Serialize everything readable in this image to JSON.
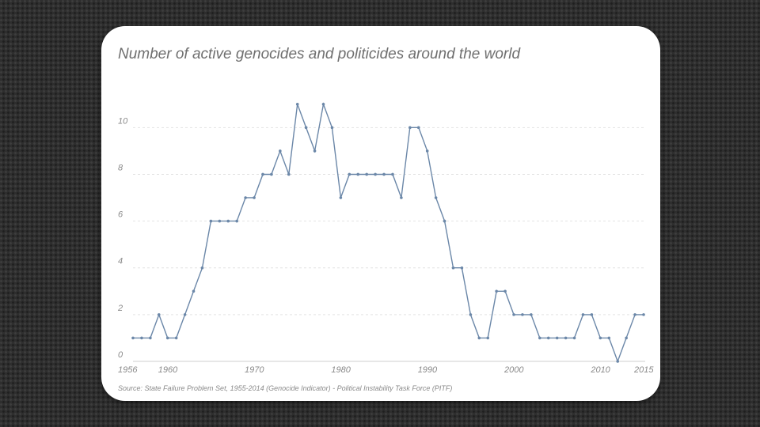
{
  "chart_data": {
    "type": "line",
    "title": "Number of active genocides and politicides around the world",
    "source": "Source: State Failure Problem Set, 1955-2014 (Genocide Indicator) - Political Instability Task Force (PITF)",
    "x": [
      1956,
      1957,
      1958,
      1959,
      1960,
      1961,
      1962,
      1963,
      1964,
      1965,
      1966,
      1967,
      1968,
      1969,
      1970,
      1971,
      1972,
      1973,
      1974,
      1975,
      1976,
      1977,
      1978,
      1979,
      1980,
      1981,
      1982,
      1983,
      1984,
      1985,
      1986,
      1987,
      1988,
      1989,
      1990,
      1991,
      1992,
      1993,
      1994,
      1995,
      1996,
      1997,
      1998,
      1999,
      2000,
      2001,
      2002,
      2003,
      2004,
      2005,
      2006,
      2007,
      2008,
      2009,
      2010,
      2011,
      2012,
      2013,
      2014,
      2015
    ],
    "series": [
      {
        "values": [
          1,
          1,
          1,
          2,
          1,
          1,
          2,
          3,
          4,
          6,
          6,
          6,
          6,
          7,
          7,
          8,
          8,
          9,
          8,
          11,
          10,
          9,
          11,
          10,
          7,
          8,
          8,
          8,
          8,
          8,
          8,
          7,
          10,
          10,
          9,
          7,
          6,
          4,
          4,
          2,
          1,
          1,
          3,
          3,
          2,
          2,
          2,
          1,
          1,
          1,
          1,
          1,
          2,
          2,
          1,
          1,
          0,
          1,
          2,
          2
        ]
      }
    ],
    "x_ticks": [
      "1956",
      "1960",
      "1970",
      "1980",
      "1990",
      "2000",
      "2010",
      "2015"
    ],
    "y_ticks": [
      "0",
      "2",
      "4",
      "6",
      "8",
      "10"
    ],
    "ylim": [
      0,
      11.5
    ],
    "xlim": [
      1956,
      2015
    ],
    "grid": true,
    "line_color": "#6b87a8"
  }
}
